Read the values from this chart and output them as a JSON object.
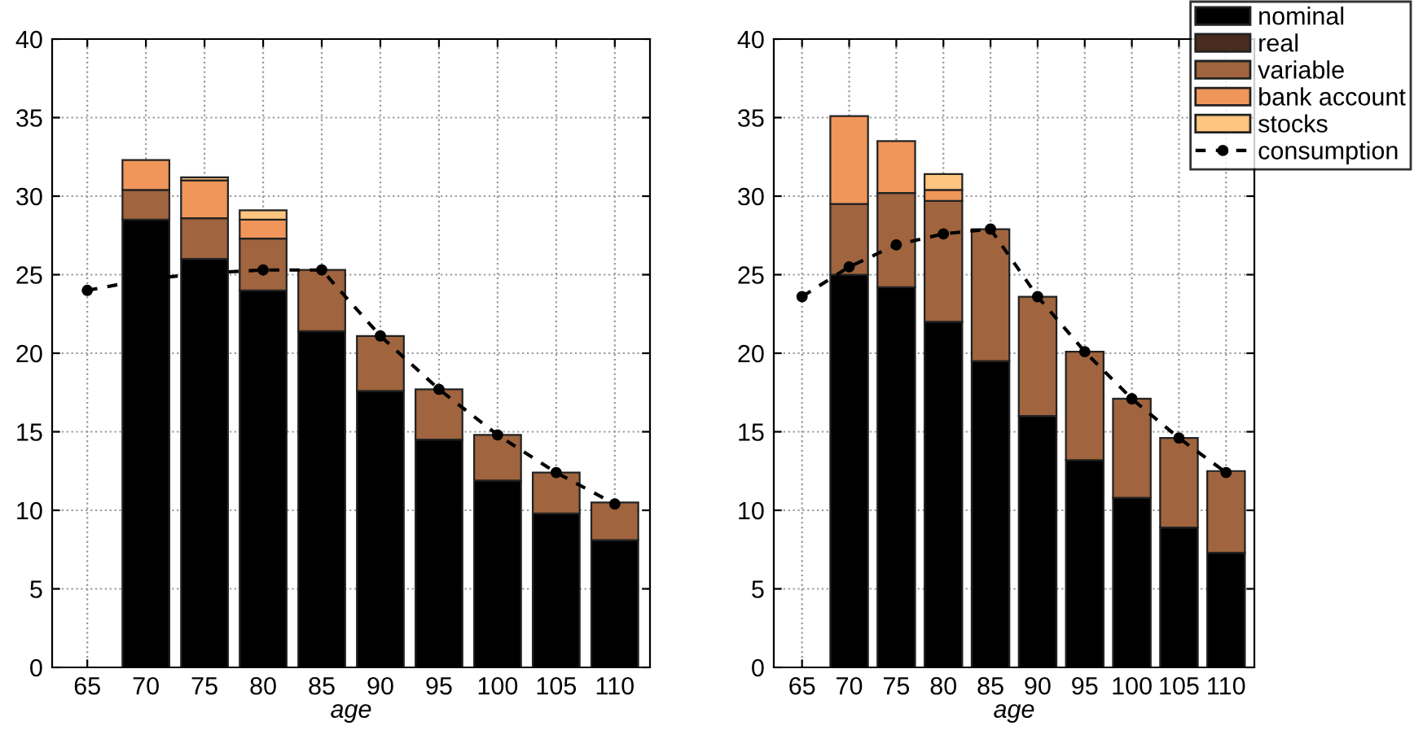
{
  "chart_data": [
    {
      "type": "bar",
      "stacked": true,
      "xlabel": "age",
      "categories": [
        "65",
        "70",
        "75",
        "80",
        "85",
        "90",
        "95",
        "100",
        "105",
        "110"
      ],
      "ylim": [
        0,
        40
      ],
      "yticks": [
        0,
        5,
        10,
        15,
        20,
        25,
        30,
        35,
        40
      ],
      "grid": true,
      "series": [
        {
          "color": "#000000",
          "values": [
            null,
            28.5,
            26.0,
            24.0,
            21.4,
            17.6,
            14.5,
            11.9,
            9.8,
            8.1
          ]
        },
        {
          "color": "#4a2c1e",
          "values": [
            null,
            null,
            null,
            null,
            null,
            null,
            null,
            null,
            null,
            null
          ]
        },
        {
          "color": "#a0643e",
          "values": [
            null,
            1.9,
            2.6,
            3.3,
            3.9,
            3.5,
            3.2,
            2.9,
            2.6,
            2.4
          ]
        },
        {
          "color": "#f0965a",
          "values": [
            null,
            1.9,
            2.4,
            1.2,
            null,
            null,
            null,
            null,
            null,
            null
          ]
        },
        {
          "color": "#fdc57f",
          "values": [
            null,
            null,
            0.2,
            0.6,
            null,
            null,
            null,
            null,
            null,
            null
          ]
        },
        {
          "type": "line",
          "color": "#000000",
          "line_style": "dashed",
          "marker": "circle",
          "values": [
            24.0,
            24.7,
            25.1,
            25.3,
            25.3,
            21.1,
            17.7,
            14.8,
            12.4,
            10.4
          ]
        }
      ]
    },
    {
      "type": "bar",
      "stacked": true,
      "xlabel": "age",
      "categories": [
        "65",
        "70",
        "75",
        "80",
        "85",
        "90",
        "95",
        "100",
        "105",
        "110"
      ],
      "ylim": [
        0,
        40
      ],
      "yticks": [
        0,
        5,
        10,
        15,
        20,
        25,
        30,
        35,
        40
      ],
      "grid": true,
      "legend": "top right",
      "series": [
        {
          "name": "nominal",
          "color": "#000000",
          "values": [
            null,
            25.0,
            24.2,
            22.0,
            19.5,
            16.0,
            13.2,
            10.8,
            8.9,
            7.3
          ]
        },
        {
          "name": "real",
          "color": "#4a2c1e",
          "values": [
            null,
            null,
            null,
            null,
            null,
            null,
            null,
            null,
            null,
            null
          ]
        },
        {
          "name": "variable",
          "color": "#a0643e",
          "values": [
            null,
            4.5,
            6.0,
            7.7,
            8.4,
            7.6,
            6.9,
            6.3,
            5.7,
            5.2
          ]
        },
        {
          "name": "bank account",
          "color": "#f0965a",
          "values": [
            null,
            5.6,
            3.3,
            0.7,
            null,
            null,
            null,
            null,
            null,
            null
          ]
        },
        {
          "name": "stocks",
          "color": "#fdc57f",
          "values": [
            null,
            null,
            null,
            1.0,
            null,
            null,
            null,
            null,
            null,
            null
          ]
        },
        {
          "name": "consumption",
          "type": "line",
          "color": "#000000",
          "line_style": "dashed",
          "marker": "circle",
          "values": [
            23.6,
            25.5,
            26.9,
            27.6,
            27.9,
            23.6,
            20.1,
            17.1,
            14.6,
            12.4
          ]
        }
      ]
    }
  ]
}
